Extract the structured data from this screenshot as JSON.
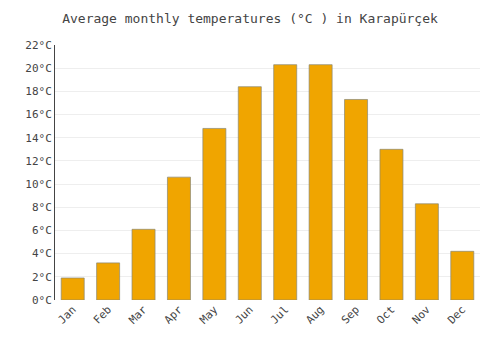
{
  "chart_data": {
    "type": "bar",
    "title": "Average monthly temperatures (°C ) in Karapürçek",
    "categories": [
      "Jan",
      "Feb",
      "Mar",
      "Apr",
      "May",
      "Jun",
      "Jul",
      "Aug",
      "Sep",
      "Oct",
      "Nov",
      "Dec"
    ],
    "values": [
      1.9,
      3.2,
      6.1,
      10.6,
      14.8,
      18.4,
      20.3,
      20.3,
      17.3,
      13.0,
      8.3,
      4.2
    ],
    "color": "#F0A500",
    "ylim": [
      0,
      22
    ],
    "yticks": [
      {
        "value": 0,
        "label": "0°C"
      },
      {
        "value": 2,
        "label": "2°C"
      },
      {
        "value": 4,
        "label": "4°C"
      },
      {
        "value": 6,
        "label": "6°C"
      },
      {
        "value": 8,
        "label": "8°C"
      },
      {
        "value": 10,
        "label": "10°C"
      },
      {
        "value": 12,
        "label": "12°C"
      },
      {
        "value": 14,
        "label": "14°C"
      },
      {
        "value": 16,
        "label": "16°C"
      },
      {
        "value": 18,
        "label": "18°C"
      },
      {
        "value": 20,
        "label": "20°C"
      },
      {
        "value": 22,
        "label": "22°C"
      }
    ],
    "grid": true
  }
}
